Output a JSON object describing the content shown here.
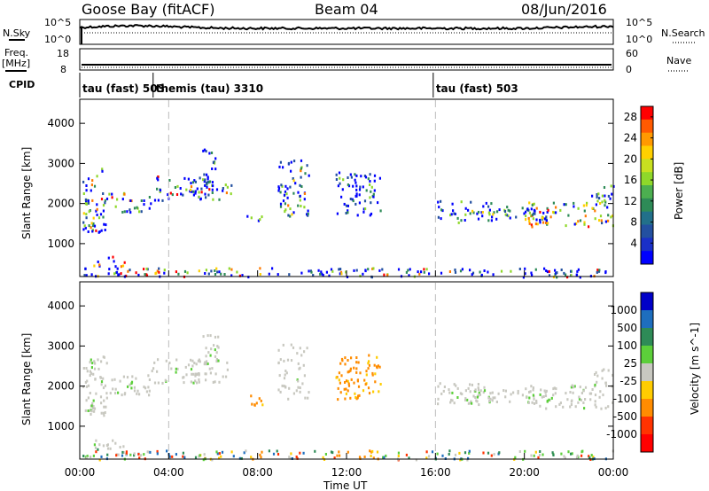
{
  "header": {
    "station": "Goose Bay (fitACF)",
    "beam": "Beam 04",
    "date": "08/Jun/2016"
  },
  "chart_data": [
    {
      "type": "line",
      "panel": "noise",
      "left_label": "N.Sky",
      "right_label": "N.Search",
      "left_ticks": [
        "10^5",
        "10^0"
      ],
      "right_ticks": [
        "10^5",
        "10^0"
      ]
    },
    {
      "type": "line",
      "panel": "freq_nave",
      "left_label_1": "Freq.",
      "left_label_2": "[MHz]",
      "right_label": "Nave",
      "left_ticks": [
        "18",
        "8"
      ],
      "right_ticks": [
        "60",
        "0"
      ],
      "cpid_label": "CPID",
      "cpid_segments": [
        {
          "label": "tau (fast) 503",
          "start_hour": 0,
          "end_hour": 3.3
        },
        {
          "label": "themis (tau) 3310",
          "start_hour": 3.3,
          "end_hour": 15.9
        },
        {
          "label": "tau (fast) 503",
          "start_hour": 15.9,
          "end_hour": 24
        }
      ]
    },
    {
      "type": "heatmap",
      "panel": "power",
      "ylabel": "Slant Range [km]",
      "yticks": [
        1000,
        2000,
        3000,
        4000
      ],
      "ylim": [
        180,
        4600
      ],
      "colorbar_label": "Power [dB]",
      "colorbar_ticks": [
        4,
        8,
        12,
        16,
        20,
        24,
        28
      ],
      "colorbar_range": [
        0,
        30
      ],
      "colors": [
        "#ff0000",
        "#ff7a00",
        "#ffd000",
        "#8fd82a",
        "#2e8b57",
        "#2350a0",
        "#0000ff"
      ]
    },
    {
      "type": "heatmap",
      "panel": "velocity",
      "ylabel": "Slant Range [km]",
      "yticks": [
        1000,
        2000,
        3000,
        4000
      ],
      "ylim": [
        180,
        4600
      ],
      "xlabel": "Time UT",
      "xticks": [
        "00:00",
        "04:00",
        "08:00",
        "12:00",
        "16:00",
        "20:00",
        "00:00"
      ],
      "colorbar_label": "Velocity [m s^-1]",
      "colorbar_ticks": [
        "1000",
        "500",
        "100",
        "25",
        "-25",
        "-100",
        "-500",
        "-1000"
      ],
      "colors": [
        "#0000c8",
        "#1e6ebe",
        "#2e8b57",
        "#5ccf3a",
        "#c8c8c0",
        "#ffcc00",
        "#ff8c00",
        "#ff3300",
        "#ff0000"
      ]
    }
  ],
  "ground_scatter_note_color": "#c8c8c0"
}
